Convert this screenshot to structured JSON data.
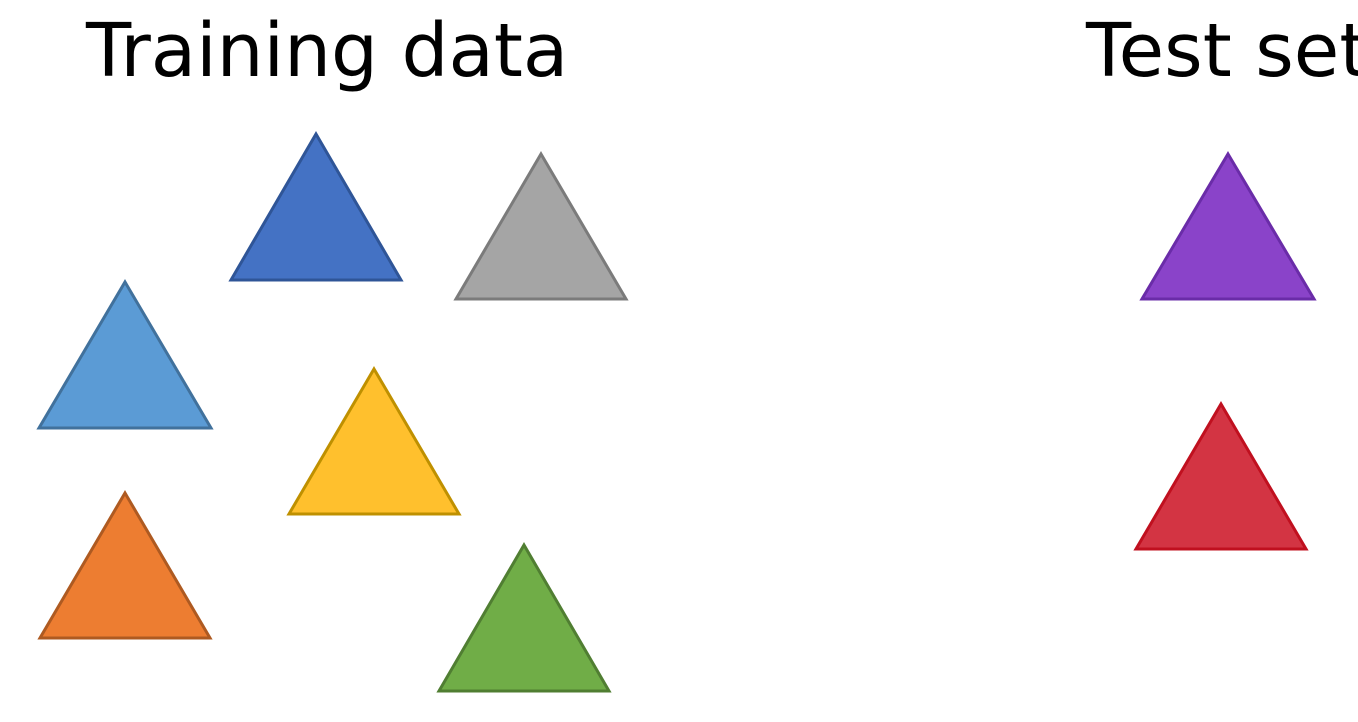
{
  "titles": {
    "training": "Training data",
    "test": "Test set"
  },
  "groups": {
    "training": {
      "items": [
        {
          "name": "dark-blue-triangle",
          "fill": "#4472C4",
          "stroke": "#2F5597"
        },
        {
          "name": "gray-triangle",
          "fill": "#A5A5A5",
          "stroke": "#7B7B7B"
        },
        {
          "name": "light-blue-triangle",
          "fill": "#5B9BD5",
          "stroke": "#41719C"
        },
        {
          "name": "yellow-triangle",
          "fill": "#FFC02D",
          "stroke": "#BF9000"
        },
        {
          "name": "orange-triangle",
          "fill": "#ED7D31",
          "stroke": "#AE5A21"
        },
        {
          "name": "green-triangle",
          "fill": "#70AD47",
          "stroke": "#507E32"
        }
      ]
    },
    "test": {
      "items": [
        {
          "name": "purple-triangle",
          "fill": "#8A43C9",
          "stroke": "#6A2CA8"
        },
        {
          "name": "red-triangle",
          "fill": "#D33443",
          "stroke": "#C0101F"
        }
      ]
    }
  }
}
